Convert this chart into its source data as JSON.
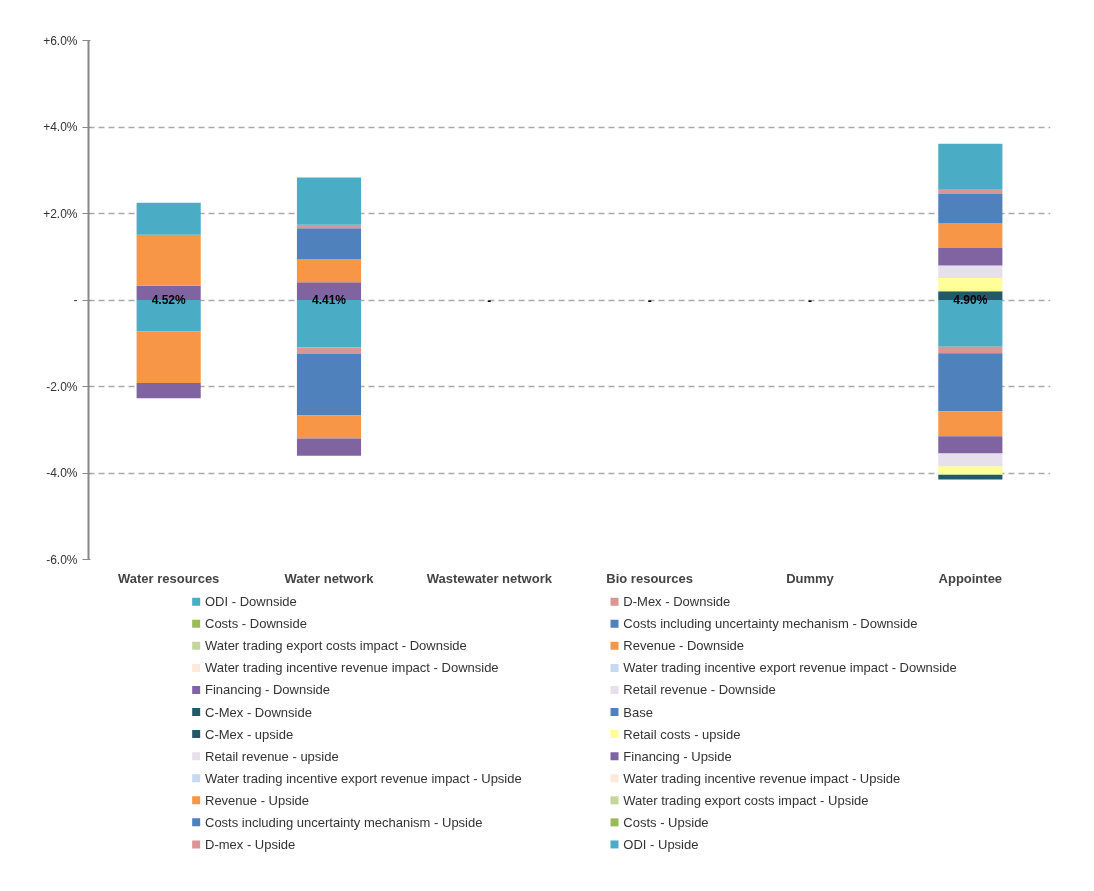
{
  "chart_data": {
    "type": "bar",
    "stacked": true,
    "categories": [
      "Water resources",
      "Water network",
      "Wastewater network",
      "Bio resources",
      "Dummy",
      "Appointee"
    ],
    "ylim": [
      -6,
      6
    ],
    "yticks": [
      {
        "value": -6,
        "label": "-6.0%"
      },
      {
        "value": -4,
        "label": "-4.0%"
      },
      {
        "value": -2,
        "label": "-2.0%"
      },
      {
        "value": 0,
        "label": "-"
      },
      {
        "value": 2,
        "label": "+2.0%"
      },
      {
        "value": 4,
        "label": "+4.0%"
      },
      {
        "value": 6,
        "label": "+6.0%"
      }
    ],
    "grid": "y",
    "legend": "bottom",
    "series": [
      {
        "name": "ODI - Downside",
        "color": "#4bacc6",
        "values": [
          -0.72,
          -1.1,
          null,
          null,
          null,
          -1.08
        ]
      },
      {
        "name": "D-Mex - Downside",
        "color": "#d99694",
        "values": [
          null,
          -0.15,
          null,
          null,
          null,
          -0.15
        ]
      },
      {
        "name": "Costs - Downside",
        "color": "#9bbb59",
        "values": [
          null,
          null,
          null,
          null,
          null,
          null
        ]
      },
      {
        "name": "Costs including uncertainty mechanism - Downside",
        "color": "#4f81bd",
        "values": [
          null,
          -1.42,
          null,
          null,
          null,
          -1.34
        ]
      },
      {
        "name": "Water trading export costs impact - Downside",
        "color": "#c3d69b",
        "values": [
          null,
          null,
          null,
          null,
          null,
          null
        ]
      },
      {
        "name": "Revenue - Downside",
        "color": "#f79646",
        "values": [
          -1.2,
          -0.53,
          null,
          null,
          null,
          -0.58
        ]
      },
      {
        "name": "Water trading incentive revenue impact - Downside",
        "color": "#fde9d9",
        "values": [
          null,
          null,
          null,
          null,
          null,
          null
        ]
      },
      {
        "name": "Water trading incentive export revenue impact - Downside",
        "color": "#c6d9f1",
        "values": [
          null,
          null,
          null,
          null,
          null,
          null
        ]
      },
      {
        "name": "Financing - Downside",
        "color": "#8064a2",
        "values": [
          -0.35,
          -0.4,
          null,
          null,
          null,
          -0.4
        ]
      },
      {
        "name": "Retail revenue - Downside",
        "color": "#e6e0ec",
        "values": [
          null,
          null,
          null,
          null,
          null,
          -0.3
        ]
      },
      {
        "color": "#ffff99",
        "values": [
          null,
          null,
          null,
          null,
          null,
          -0.19
        ]
      },
      {
        "name": "C-Mex - Downside",
        "color": "#215968",
        "values": [
          null,
          null,
          null,
          null,
          null,
          -0.11
        ]
      },
      {
        "name": "Base",
        "color": "#4f81bd",
        "values": [
          null,
          null,
          null,
          null,
          null,
          null
        ]
      },
      {
        "name": "C-Mex - upside",
        "color": "#215968",
        "values": [
          null,
          null,
          null,
          null,
          null,
          0.2
        ]
      },
      {
        "name": "Retail costs - upside",
        "color": "#ffff99",
        "values": [
          null,
          null,
          null,
          null,
          null,
          0.31
        ]
      },
      {
        "name": "Retail revenue - upside",
        "color": "#e6e0ec",
        "values": [
          null,
          null,
          null,
          null,
          null,
          0.29
        ]
      },
      {
        "name": "Financing - Upside",
        "color": "#8064a2",
        "values": [
          0.33,
          0.41,
          null,
          null,
          null,
          0.4
        ]
      },
      {
        "name": "Water trading incentive export revenue impact - Upside",
        "color": "#c6d9f1",
        "values": [
          null,
          null,
          null,
          null,
          null,
          null
        ]
      },
      {
        "name": "Water trading incentive revenue impact - Upside",
        "color": "#fde9d9",
        "values": [
          null,
          null,
          null,
          null,
          null,
          null
        ]
      },
      {
        "name": "Revenue - Upside",
        "color": "#f79646",
        "values": [
          1.18,
          0.54,
          null,
          null,
          null,
          0.58
        ]
      },
      {
        "name": "Water trading export costs impact - Upside",
        "color": "#c3d69b",
        "values": [
          null,
          null,
          null,
          null,
          null,
          null
        ]
      },
      {
        "name": "Costs including uncertainty mechanism - Upside",
        "color": "#4f81bd",
        "values": [
          null,
          0.71,
          null,
          null,
          null,
          0.67
        ]
      },
      {
        "name": "Costs - Upside",
        "color": "#9bbb59",
        "values": [
          null,
          null,
          null,
          null,
          null,
          null
        ]
      },
      {
        "name": "D-mex - Upside",
        "color": "#d99694",
        "values": [
          null,
          0.08,
          null,
          null,
          null,
          0.1
        ]
      },
      {
        "name": "ODI - Upside",
        "color": "#4bacc6",
        "values": [
          0.74,
          1.09,
          null,
          null,
          null,
          1.06
        ]
      }
    ],
    "annotations": [
      {
        "text": "4.52%",
        "x": "Water resources",
        "y": 0
      },
      {
        "text": "4.41%",
        "x": "Water network",
        "y": 0
      },
      "-",
      "-",
      "-",
      {
        "text": "4.90%",
        "x": "Appointee",
        "y": 0
      }
    ]
  }
}
